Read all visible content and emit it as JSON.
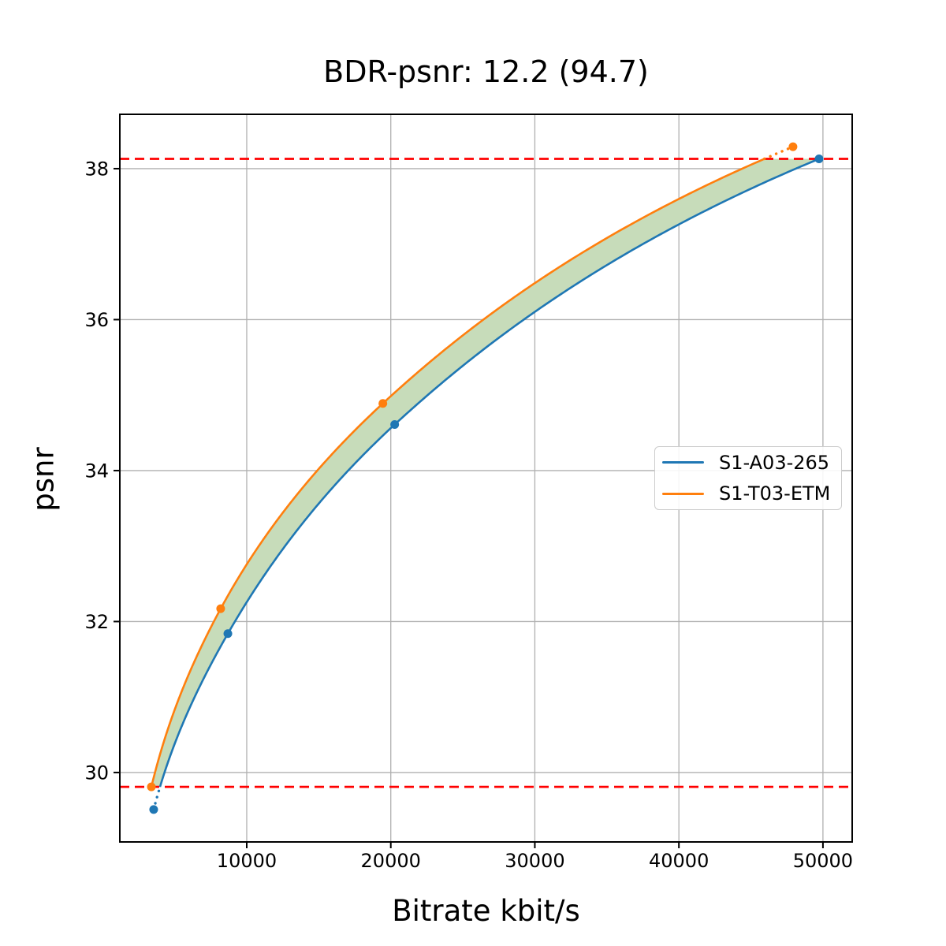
{
  "chart_data": {
    "type": "line",
    "title": "BDR-psnr: 12.2 (94.7)",
    "xlabel": "Bitrate kbit/s",
    "ylabel": "psnr",
    "bdr_value": "12.2",
    "bdr_secondary_value": "94.7",
    "xlim": [
      1190,
      52030
    ],
    "ylim": [
      29.08,
      38.72
    ],
    "xticks": [
      10000,
      20000,
      30000,
      40000,
      50000
    ],
    "xtick_labels": [
      "10000",
      "20000",
      "30000",
      "40000",
      "50000"
    ],
    "yticks": [
      30,
      32,
      34,
      36,
      38
    ],
    "ytick_labels": [
      "30",
      "32",
      "34",
      "36",
      "38"
    ],
    "grid": true,
    "grid_color": "#b0b0b0",
    "axes_color": "#000000",
    "legend_position": "center right",
    "series": [
      {
        "name": "S1-A03-265",
        "color": "#1f77b4",
        "marker": "circle",
        "points": [
          [
            3540,
            29.51
          ],
          [
            8690,
            31.84
          ],
          [
            20270,
            34.61
          ],
          [
            49730,
            38.13
          ]
        ]
      },
      {
        "name": "S1-T03-ETM",
        "color": "#ff7f0e",
        "marker": "circle",
        "points": [
          [
            3380,
            29.81
          ],
          [
            8190,
            32.17
          ],
          [
            19450,
            34.89
          ],
          [
            47920,
            38.29
          ]
        ]
      }
    ],
    "overlap_region": {
      "low_psnr": 29.81,
      "high_psnr": 38.13,
      "line_color": "#ff0000",
      "line_style": "dashed",
      "fill_color": "#c7dcba"
    }
  }
}
